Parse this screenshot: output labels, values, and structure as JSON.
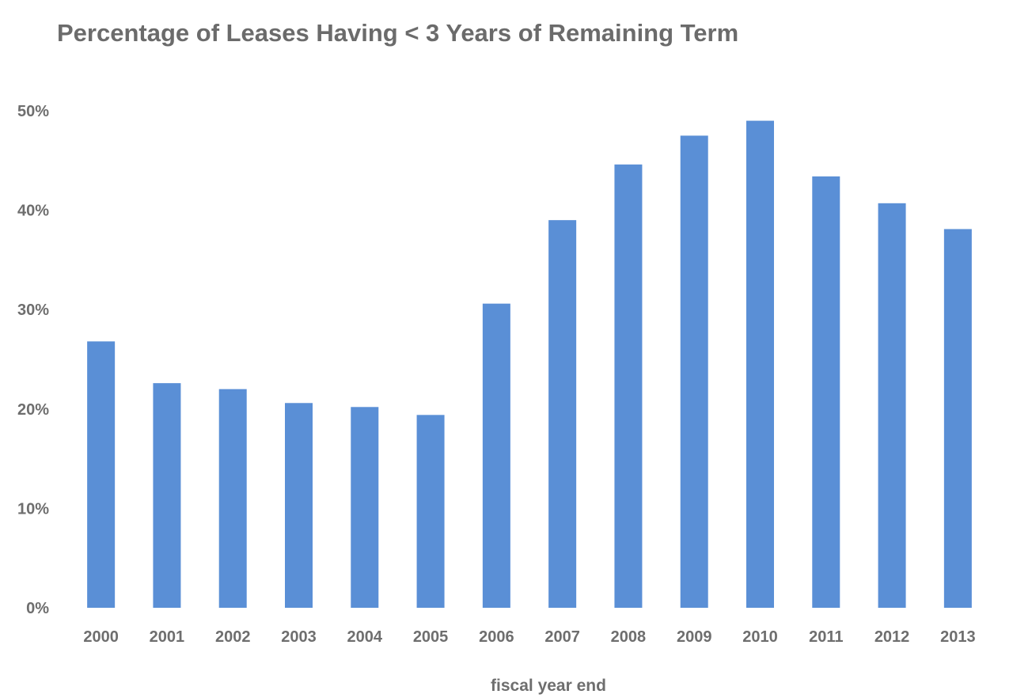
{
  "chart_data": {
    "type": "bar",
    "title": "Percentage of Leases Having < 3 Years of Remaining Term",
    "xlabel": "fiscal year end",
    "ylabel": "",
    "categories": [
      "2000",
      "2001",
      "2002",
      "2003",
      "2004",
      "2005",
      "2006",
      "2007",
      "2008",
      "2009",
      "2010",
      "2011",
      "2012",
      "2013"
    ],
    "values": [
      26.8,
      22.6,
      22.0,
      20.6,
      20.2,
      19.4,
      30.6,
      39.0,
      44.6,
      47.5,
      49.0,
      43.4,
      40.7,
      38.1
    ],
    "value_unit": "%",
    "ylim": [
      0,
      50
    ],
    "y_ticks": [
      0,
      10,
      20,
      30,
      40,
      50
    ],
    "y_tick_labels": [
      "0%",
      "10%",
      "20%",
      "30%",
      "40%",
      "50%"
    ],
    "bar_color": "#5a8fd6",
    "grid": false,
    "legend": "none"
  }
}
